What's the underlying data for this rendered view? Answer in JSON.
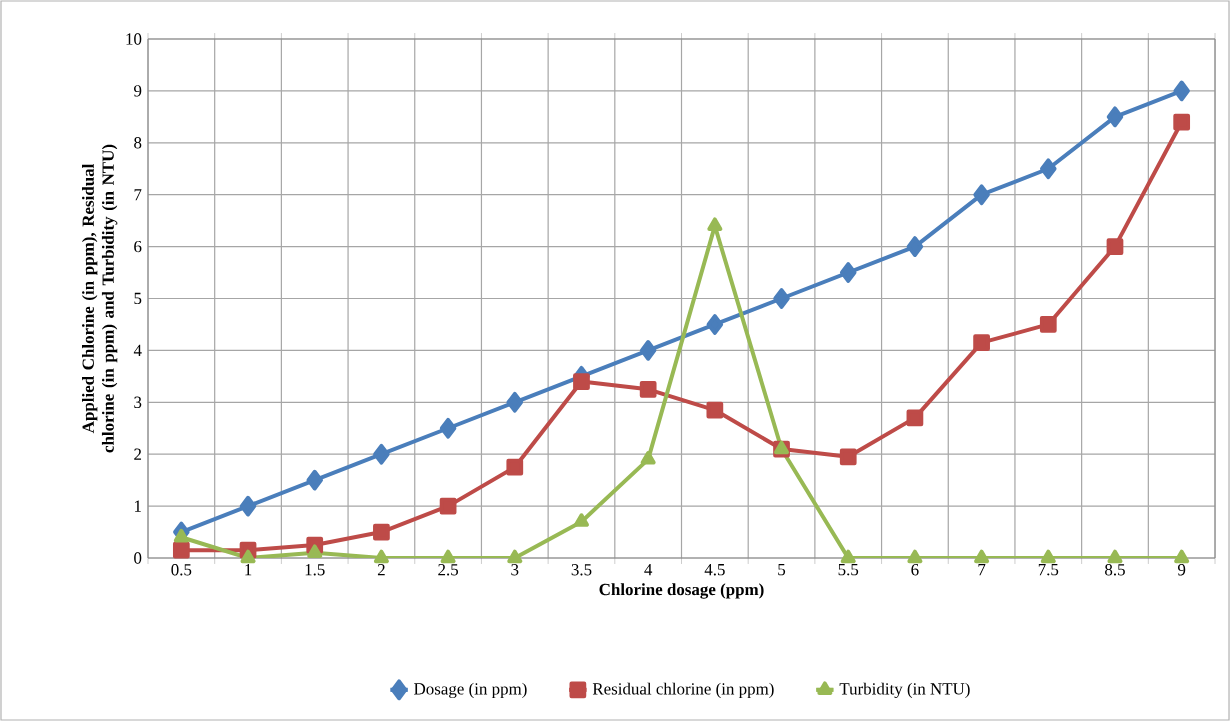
{
  "chart_data": {
    "type": "line",
    "xlabel": "Chlorine dosage (ppm)",
    "ylabel": "Applied Chlorine (in ppm), Residual chlorine (in ppm) and Turbidity (in NTU)",
    "categories": [
      "0.5",
      "1",
      "1.5",
      "2",
      "2.5",
      "3",
      "3.5",
      "4",
      "4.5",
      "5",
      "5.5",
      "6",
      "7",
      "7.5",
      "8.5",
      "9"
    ],
    "series": [
      {
        "name": "Dosage (in ppm)",
        "color": "#4a7ebb",
        "marker": "diamond",
        "values": [
          0.5,
          1,
          1.5,
          2,
          2.5,
          3,
          3.5,
          4,
          4.5,
          5,
          5.5,
          6,
          7,
          7.5,
          8.5,
          9
        ]
      },
      {
        "name": "Residual chlorine (in ppm)",
        "color": "#be4b48",
        "marker": "square",
        "values": [
          0.15,
          0.15,
          0.25,
          0.5,
          1.0,
          1.75,
          3.4,
          3.25,
          2.85,
          2.1,
          1.95,
          2.7,
          4.15,
          4.5,
          6.0,
          8.4
        ]
      },
      {
        "name": "Turbidity (in NTU)",
        "color": "#98b954",
        "marker": "triangle",
        "values": [
          0.4,
          0,
          0.1,
          0,
          0,
          0,
          0.7,
          1.9,
          6.4,
          2.1,
          0,
          0,
          0,
          0,
          0,
          0
        ]
      }
    ],
    "ylim": [
      0,
      10
    ],
    "yticks": [
      0,
      1,
      2,
      3,
      4,
      5,
      6,
      7,
      8,
      9,
      10
    ],
    "grid": true,
    "legend": "bottom"
  }
}
